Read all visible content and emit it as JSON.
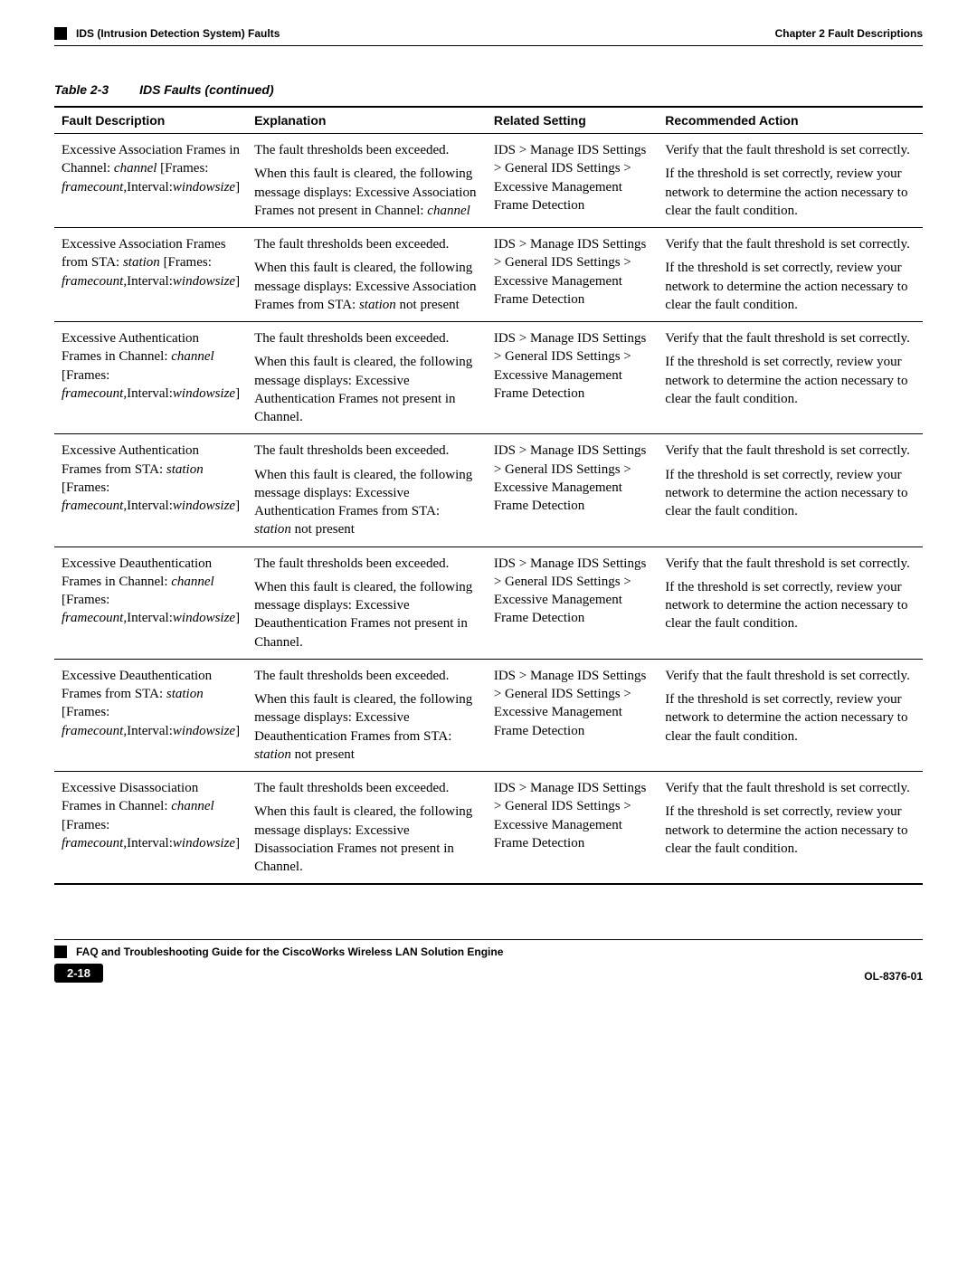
{
  "header": {
    "left": "IDS (Intrusion Detection System) Faults",
    "right": "Chapter 2      Fault Descriptions"
  },
  "table_caption": {
    "number": "Table 2-3",
    "name": "IDS Faults (continued)"
  },
  "columns": [
    "Fault Description",
    "Explanation",
    "Related Setting",
    "Recommended Action"
  ],
  "related_setting_html": "IDS > Manage IDS Settings > General IDS Settings > Excessive Management Frame Detection",
  "recommended_action": {
    "p1": "Verify that the fault threshold is set correctly.",
    "p2": "If the threshold is set correctly, review your network to determine the action necessary to clear the fault condition."
  },
  "rows": [
    {
      "fault_html": "Excessive Association Frames in Channel: <span class=\"it\">channel</span> [Frames: <span class=\"it\">framecount</span>,Interval:<span class=\"it\">windowsize</span>]",
      "expl_p1": "The fault thresholds been exceeded.",
      "expl_p2_html": "When this fault is cleared, the following message displays: Excessive Association Frames not present in Channel: <span class=\"it\">channel</span>"
    },
    {
      "fault_html": "Excessive Association Frames from STA: <span class=\"it\">station</span> [Frames: <span class=\"it\">framecount</span>,Interval:<span class=\"it\">windowsize</span>]",
      "expl_p1": "The fault thresholds been exceeded.",
      "expl_p2_html": "When this fault is cleared, the following message displays: Excessive Association Frames from STA: <span class=\"it\">station</span> not present"
    },
    {
      "fault_html": "Excessive Authentication Frames in Channel: <span class=\"it\">channel</span> [Frames: <span class=\"it\">framecount</span>,Interval:<span class=\"it\">windowsize</span>]",
      "expl_p1": "The fault thresholds been exceeded.",
      "expl_p2_html": "When this fault is cleared, the following message displays: Excessive Authentication Frames not present in Channel."
    },
    {
      "fault_html": "Excessive Authentication Frames from STA: <span class=\"it\">station</span> [Frames: <span class=\"it\">framecount</span>,Interval:<span class=\"it\">windowsize</span>]",
      "expl_p1": "The fault thresholds been exceeded.",
      "expl_p2_html": "When this fault is cleared, the following message displays: Excessive Authentication Frames from STA: <span class=\"it\">station</span> not present"
    },
    {
      "fault_html": "Excessive Deauthentication Frames in Channel: <span class=\"it\">channel</span> [Frames: <span class=\"it\">framecount</span>,Interval:<span class=\"it\">windowsize</span>]",
      "expl_p1": "The fault thresholds been exceeded.",
      "expl_p2_html": "When this fault is cleared, the following message displays: Excessive Deauthentication Frames not present in Channel."
    },
    {
      "fault_html": "Excessive Deauthentication Frames from STA: <span class=\"it\">station</span> [Frames: <span class=\"it\">framecount</span>,Interval:<span class=\"it\">windowsize</span>]",
      "expl_p1": "The fault thresholds been exceeded.",
      "expl_p2_html": "When this fault is cleared, the following message displays: Excessive Deauthentication Frames from STA: <span class=\"it\">station</span> not present"
    },
    {
      "fault_html": "Excessive Disassociation Frames in Channel: <span class=\"it\">channel</span> [Frames: <span class=\"it\">framecount</span>,Interval:<span class=\"it\">windowsize</span>]",
      "expl_p1": "The fault thresholds been exceeded.",
      "expl_p2_html": "When this fault is cleared, the following message displays: Excessive Disassociation Frames not present in Channel."
    }
  ],
  "footer": {
    "title": "FAQ and Troubleshooting Guide for the CiscoWorks Wireless LAN Solution Engine",
    "page": "2-18",
    "docid": "OL-8376-01"
  }
}
